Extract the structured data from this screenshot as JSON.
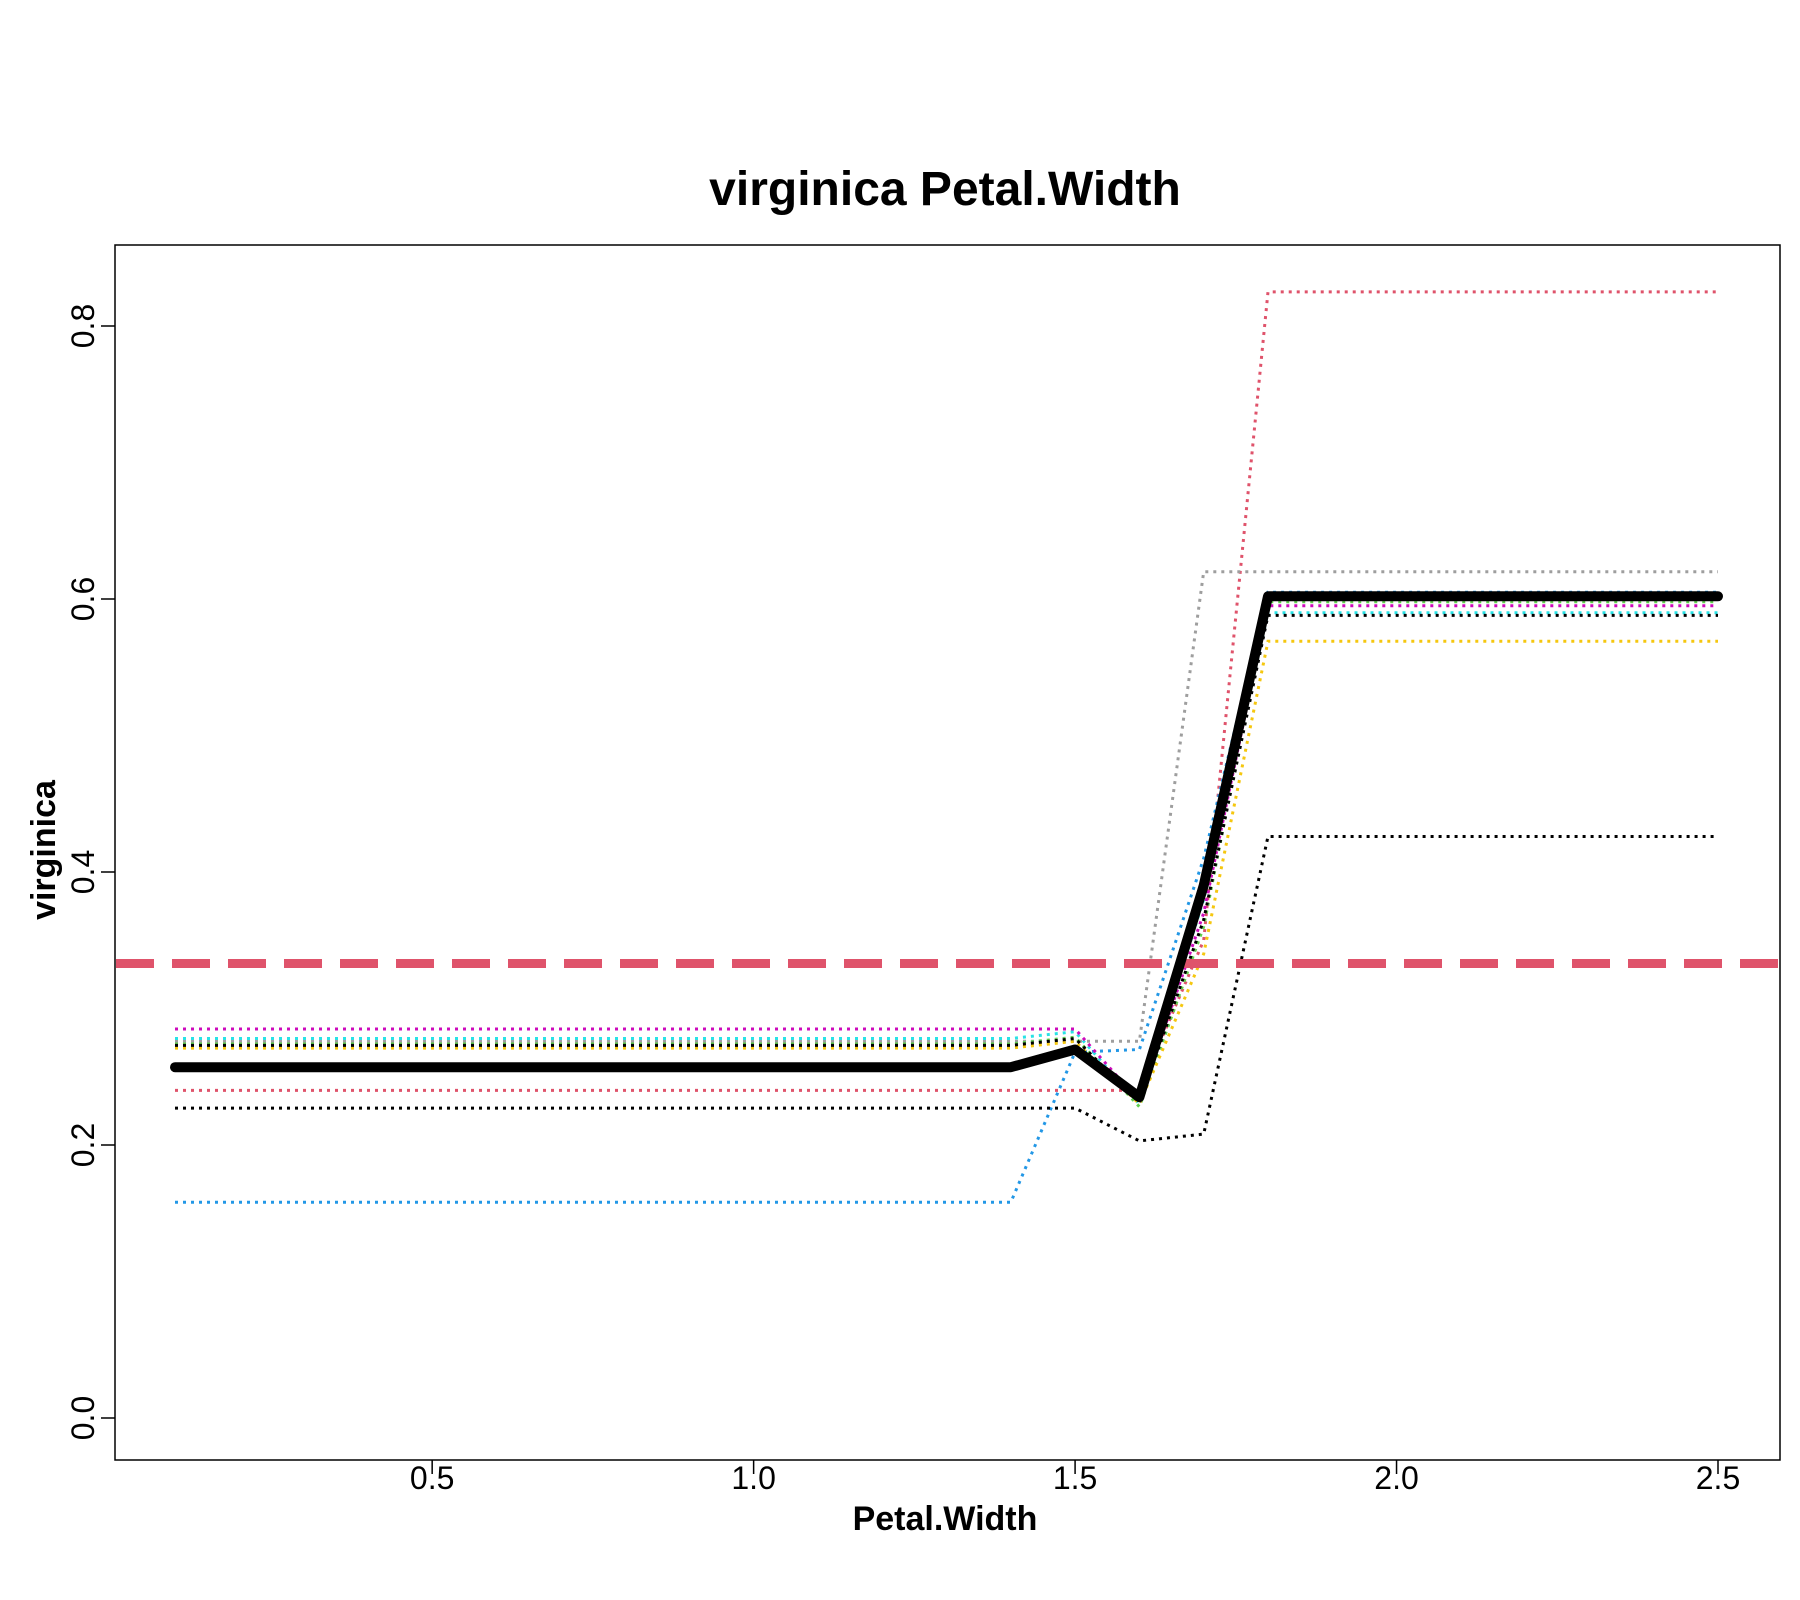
{
  "chart_data": {
    "type": "line",
    "title": "virginica  Petal.Width",
    "xlabel": "Petal.Width",
    "ylabel": "virginica",
    "xlim": [
      0.1,
      2.5
    ],
    "ylim": [
      0.0,
      0.8
    ],
    "xticks": [
      0.5,
      1.0,
      1.5,
      2.0,
      2.5
    ],
    "xtick_labels": [
      "0.5",
      "1.0",
      "1.5",
      "2.0",
      "2.5"
    ],
    "yticks": [
      0.0,
      0.2,
      0.4,
      0.6,
      0.8
    ],
    "ytick_labels": [
      "0.0",
      "0.2",
      "0.4",
      "0.6",
      "0.8"
    ],
    "grid": false,
    "x": [
      0.1,
      1.4,
      1.5,
      1.6,
      1.7,
      1.8,
      2.5
    ],
    "reference_line": {
      "y": 0.333,
      "color": "#df536b",
      "style": "dashed"
    },
    "average": {
      "color": "#000000",
      "values": [
        0.257,
        0.257,
        0.27,
        0.235,
        0.39,
        0.602,
        0.602
      ]
    },
    "series": [
      {
        "color": "#df536b",
        "values": [
          0.24,
          0.24,
          0.24,
          0.24,
          0.35,
          0.825,
          0.825
        ]
      },
      {
        "color": "#9e9e9e",
        "values": [
          0.276,
          0.276,
          0.276,
          0.276,
          0.62,
          0.62,
          0.62
        ]
      },
      {
        "color": "#2297e6",
        "values": [
          0.158,
          0.158,
          0.268,
          0.27,
          0.41,
          0.605,
          0.605
        ]
      },
      {
        "color": "#28e2e5",
        "values": [
          0.278,
          0.278,
          0.283,
          0.23,
          0.38,
          0.59,
          0.59
        ]
      },
      {
        "color": "#cd0bbc",
        "values": [
          0.285,
          0.285,
          0.285,
          0.232,
          0.37,
          0.595,
          0.595
        ]
      },
      {
        "color": "#61d04f",
        "values": [
          0.274,
          0.274,
          0.279,
          0.228,
          0.36,
          0.598,
          0.598
        ]
      },
      {
        "color": "#f5c710",
        "values": [
          0.271,
          0.271,
          0.276,
          0.23,
          0.34,
          0.569,
          0.569
        ]
      },
      {
        "color": "#000000",
        "values": [
          0.273,
          0.273,
          0.278,
          0.231,
          0.365,
          0.588,
          0.588
        ]
      },
      {
        "color": "#000000",
        "values": [
          0.227,
          0.227,
          0.227,
          0.203,
          0.208,
          0.426,
          0.426
        ]
      }
    ]
  }
}
